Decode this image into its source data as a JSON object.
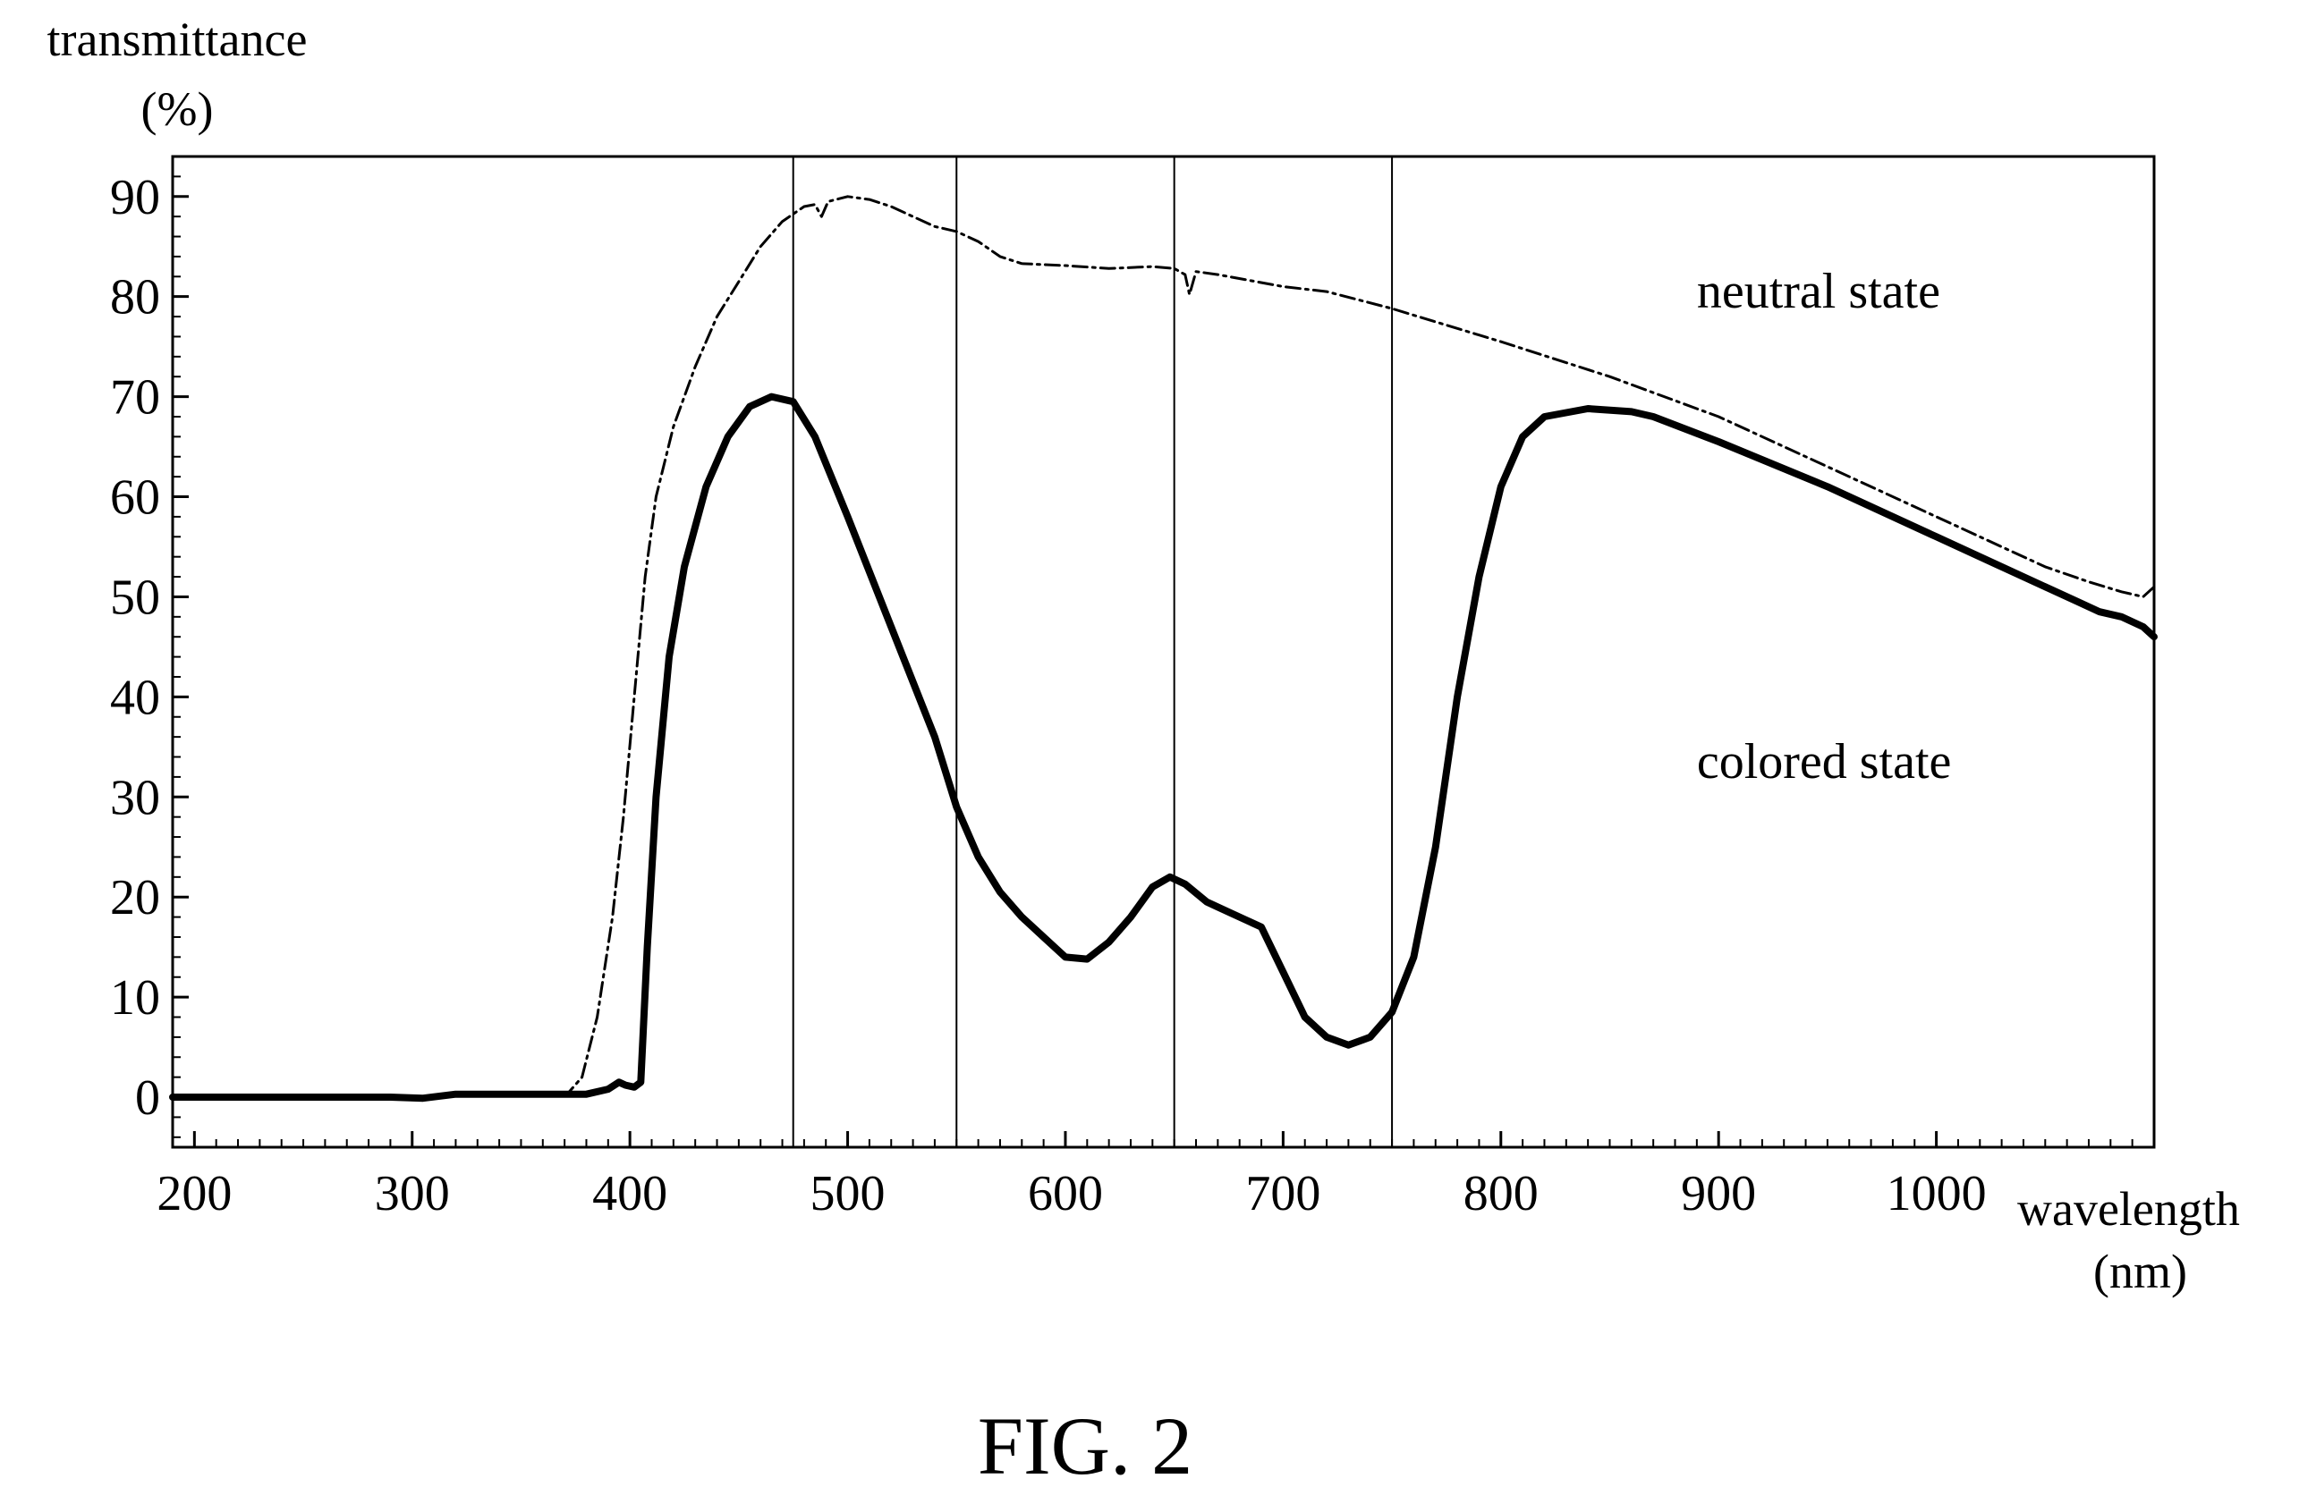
{
  "chart_data": {
    "type": "line",
    "ylabel": [
      "transmittance",
      "(%)"
    ],
    "xlabel": [
      "wavelength",
      "(nm)"
    ],
    "caption": "FIG. 2",
    "xlim": [
      190,
      1100
    ],
    "ylim": [
      -5,
      94
    ],
    "x_ticks": [
      200,
      300,
      400,
      500,
      600,
      700,
      800,
      900,
      1000
    ],
    "y_ticks": [
      0,
      10,
      20,
      30,
      40,
      50,
      60,
      70,
      80,
      90
    ],
    "vertical_lines": [
      475,
      550,
      650,
      750
    ],
    "grid": false,
    "legend": "none (inline labels)",
    "series": [
      {
        "name": "neutral state",
        "style": "dash-dot",
        "color": "#000000",
        "points": [
          [
            190,
            0
          ],
          [
            250,
            0
          ],
          [
            300,
            0
          ],
          [
            320,
            0.3
          ],
          [
            360,
            0.3
          ],
          [
            372,
            0.5
          ],
          [
            378,
            2
          ],
          [
            385,
            8
          ],
          [
            392,
            18
          ],
          [
            397,
            28
          ],
          [
            402,
            40
          ],
          [
            407,
            52
          ],
          [
            412,
            60
          ],
          [
            420,
            67
          ],
          [
            430,
            73
          ],
          [
            440,
            78
          ],
          [
            450,
            81.5
          ],
          [
            460,
            85
          ],
          [
            470,
            87.5
          ],
          [
            480,
            89
          ],
          [
            485,
            89.2
          ],
          [
            488,
            88
          ],
          [
            491,
            89.5
          ],
          [
            500,
            90
          ],
          [
            510,
            89.7
          ],
          [
            520,
            89
          ],
          [
            530,
            88
          ],
          [
            540,
            87
          ],
          [
            550,
            86.5
          ],
          [
            560,
            85.5
          ],
          [
            570,
            84
          ],
          [
            580,
            83.3
          ],
          [
            590,
            83.2
          ],
          [
            600,
            83.1
          ],
          [
            620,
            82.8
          ],
          [
            640,
            83
          ],
          [
            650,
            82.8
          ],
          [
            655,
            82.2
          ],
          [
            657,
            80.2
          ],
          [
            660,
            82.5
          ],
          [
            670,
            82.2
          ],
          [
            700,
            81
          ],
          [
            720,
            80.5
          ],
          [
            750,
            78.8
          ],
          [
            800,
            75.5
          ],
          [
            850,
            72
          ],
          [
            900,
            68
          ],
          [
            950,
            63
          ],
          [
            1000,
            58
          ],
          [
            1030,
            55
          ],
          [
            1050,
            53
          ],
          [
            1070,
            51.5
          ],
          [
            1085,
            50.5
          ],
          [
            1095,
            50
          ],
          [
            1100,
            51
          ]
        ]
      },
      {
        "name": "colored state",
        "style": "solid-bold",
        "color": "#000000",
        "points": [
          [
            190,
            0
          ],
          [
            250,
            0
          ],
          [
            290,
            0
          ],
          [
            305,
            -0.1
          ],
          [
            320,
            0.3
          ],
          [
            360,
            0.3
          ],
          [
            380,
            0.3
          ],
          [
            390,
            0.8
          ],
          [
            395,
            1.5
          ],
          [
            398,
            1.2
          ],
          [
            402,
            1.0
          ],
          [
            405,
            1.5
          ],
          [
            408,
            15
          ],
          [
            412,
            30
          ],
          [
            418,
            44
          ],
          [
            425,
            53
          ],
          [
            435,
            61
          ],
          [
            445,
            66
          ],
          [
            455,
            69
          ],
          [
            465,
            70
          ],
          [
            475,
            69.5
          ],
          [
            485,
            66
          ],
          [
            500,
            58
          ],
          [
            520,
            47
          ],
          [
            540,
            36
          ],
          [
            550,
            29
          ],
          [
            560,
            24
          ],
          [
            570,
            20.5
          ],
          [
            580,
            18
          ],
          [
            590,
            16
          ],
          [
            600,
            14
          ],
          [
            610,
            13.8
          ],
          [
            620,
            15.5
          ],
          [
            630,
            18
          ],
          [
            640,
            21
          ],
          [
            648,
            22
          ],
          [
            655,
            21.3
          ],
          [
            665,
            19.5
          ],
          [
            675,
            18.5
          ],
          [
            690,
            17
          ],
          [
            700,
            12.5
          ],
          [
            710,
            8
          ],
          [
            720,
            6
          ],
          [
            730,
            5.2
          ],
          [
            740,
            6
          ],
          [
            750,
            8.5
          ],
          [
            760,
            14
          ],
          [
            770,
            25
          ],
          [
            780,
            40
          ],
          [
            790,
            52
          ],
          [
            800,
            61
          ],
          [
            810,
            66
          ],
          [
            820,
            68
          ],
          [
            840,
            68.8
          ],
          [
            860,
            68.5
          ],
          [
            870,
            68
          ],
          [
            900,
            65.5
          ],
          [
            950,
            61
          ],
          [
            1000,
            56
          ],
          [
            1030,
            53
          ],
          [
            1050,
            51
          ],
          [
            1065,
            49.5
          ],
          [
            1075,
            48.5
          ],
          [
            1085,
            48
          ],
          [
            1095,
            47
          ],
          [
            1100,
            46
          ]
        ]
      }
    ],
    "annotations": [
      {
        "text": "neutral state",
        "x": 890,
        "y": 80.5
      },
      {
        "text": "colored state",
        "x": 890,
        "y": 33.5
      }
    ]
  }
}
